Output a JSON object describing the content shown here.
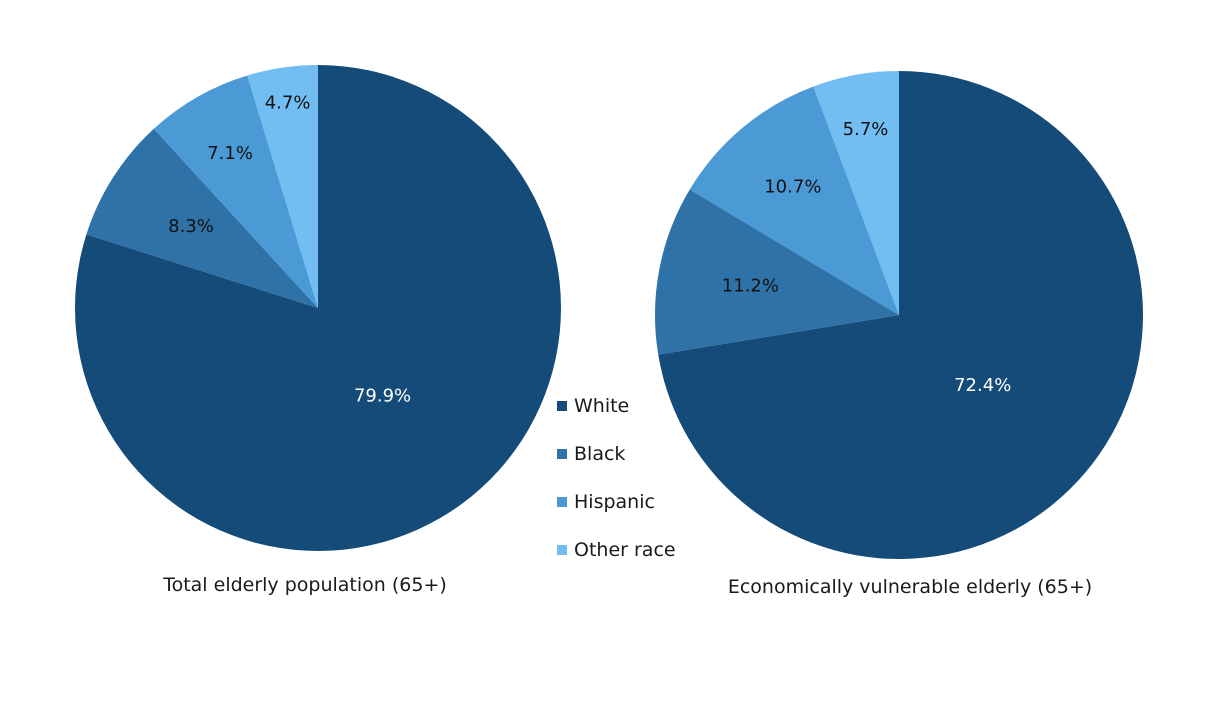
{
  "colors": {
    "White": "#154b78",
    "Black": "#2e72a8",
    "Hispanic": "#4b9ad6",
    "Other race": "#72bdf2"
  },
  "legend": {
    "items": [
      "White",
      "Black",
      "Hispanic",
      "Other race"
    ]
  },
  "chart_data": [
    {
      "type": "pie",
      "title": "Total elderly population (65+)",
      "series": [
        {
          "name": "White",
          "value": 79.9,
          "label": "79.9%"
        },
        {
          "name": "Black",
          "value": 8.3,
          "label": "8.3%"
        },
        {
          "name": "Hispanic",
          "value": 7.1,
          "label": "7.1%"
        },
        {
          "name": "Other race",
          "value": 4.7,
          "label": "4.7%"
        }
      ],
      "legend_position": "center"
    },
    {
      "type": "pie",
      "title": "Economically vulnerable elderly (65+)",
      "series": [
        {
          "name": "White",
          "value": 72.4,
          "label": "72.4%"
        },
        {
          "name": "Black",
          "value": 11.2,
          "label": "11.2%"
        },
        {
          "name": "Hispanic",
          "value": 10.7,
          "label": "10.7%"
        },
        {
          "name": "Other race",
          "value": 5.7,
          "label": "5.7%"
        }
      ],
      "legend_position": "center"
    }
  ]
}
